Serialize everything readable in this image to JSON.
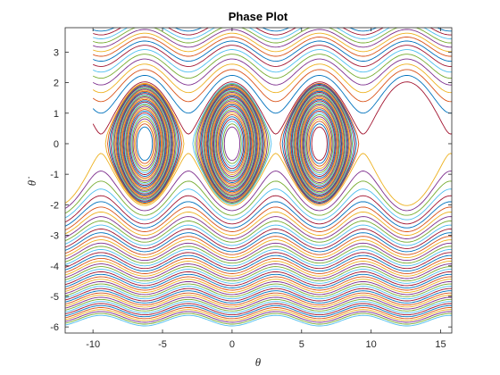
{
  "chart_data": {
    "type": "line",
    "title": "Phase Plot",
    "xlabel": "θ",
    "ylabel": "θ̇",
    "xlim": [
      -12,
      15.8
    ],
    "ylim": [
      -6.2,
      3.8
    ],
    "xticks": [
      -10,
      -5,
      0,
      5,
      10,
      15
    ],
    "yticks": [
      -6,
      -5,
      -4,
      -3,
      -2,
      -1,
      0,
      1,
      2,
      3
    ],
    "xtick_labels": [
      "-10",
      "-5",
      "0",
      "5",
      "10",
      "15"
    ],
    "ytick_labels": [
      "-6",
      "-5",
      "-4",
      "-3",
      "-2",
      "-1",
      "0",
      "1",
      "2",
      "3"
    ],
    "grid": false,
    "legend": "none",
    "description_of_series": "Many pendulum phase-space trajectories (θ, dθ/dt): closed librating orbits centered at θ = -2π, 0, 2π and open rotating curves above/below the separatrix.",
    "series_colors": [
      "#0072BD",
      "#D95319",
      "#EDB120",
      "#7E2F8E",
      "#77AC30",
      "#4DBEEE",
      "#A2142F"
    ],
    "libration_centers": [
      -6.283,
      0,
      6.283
    ],
    "libration_energies": [
      0.3,
      0.5,
      0.7,
      0.9,
      1.1,
      1.3,
      1.5,
      1.7,
      1.85,
      1.95
    ],
    "rotation_offsets_lower": [
      -2.2,
      -2.5,
      -2.8,
      -3.1,
      -3.4,
      -3.7,
      -4.0,
      -4.3
    ],
    "rotation_offsets_upper": [
      2.2,
      2.5,
      2.8,
      3.1,
      3.4,
      3.7
    ]
  }
}
